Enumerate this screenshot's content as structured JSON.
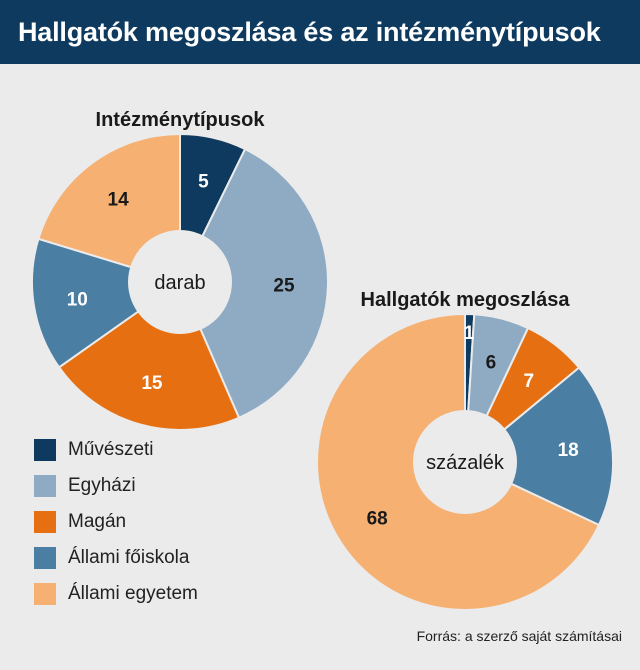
{
  "title": "Hallgatók megoszlása és az intézménytípusok",
  "source": "Forrás: a szerző saját számításai",
  "legend": [
    {
      "label": "Művészeti",
      "color": "#0d3a5e"
    },
    {
      "label": "Egyházi",
      "color": "#8fabc4"
    },
    {
      "label": "Magán",
      "color": "#e66f12"
    },
    {
      "label": "Állami főiskola",
      "color": "#4a7ea2"
    },
    {
      "label": "Állami egyetem",
      "color": "#f5b072"
    }
  ],
  "chart_data": [
    {
      "type": "pie",
      "title": "Intézménytípusok",
      "center_label": "darab",
      "categories": [
        "Művészeti",
        "Egyházi",
        "Magán",
        "Állami főiskola",
        "Állami egyetem"
      ],
      "values": [
        5,
        25,
        15,
        10,
        14
      ],
      "value_labels": [
        "5",
        "25",
        "15",
        "10",
        "14"
      ],
      "colors": [
        "#0d3a5e",
        "#8fabc4",
        "#e66f12",
        "#4a7ea2",
        "#f5b072"
      ],
      "label_colors": [
        "#ffffff",
        "#1a1a1a",
        "#ffffff",
        "#ffffff",
        "#1a1a1a"
      ]
    },
    {
      "type": "pie",
      "title": "Hallgatók megoszlása",
      "center_label": "százalék",
      "categories": [
        "Művészeti",
        "Egyházi",
        "Magán",
        "Állami főiskola",
        "Állami egyetem"
      ],
      "values": [
        1,
        6,
        7,
        18,
        68
      ],
      "value_labels": [
        "1",
        "6",
        "7",
        "18",
        "68"
      ],
      "colors": [
        "#0d3a5e",
        "#8fabc4",
        "#e66f12",
        "#4a7ea2",
        "#f5b072"
      ],
      "label_colors": [
        "#ffffff",
        "#1a1a1a",
        "#ffffff",
        "#ffffff",
        "#1a1a1a"
      ]
    }
  ]
}
